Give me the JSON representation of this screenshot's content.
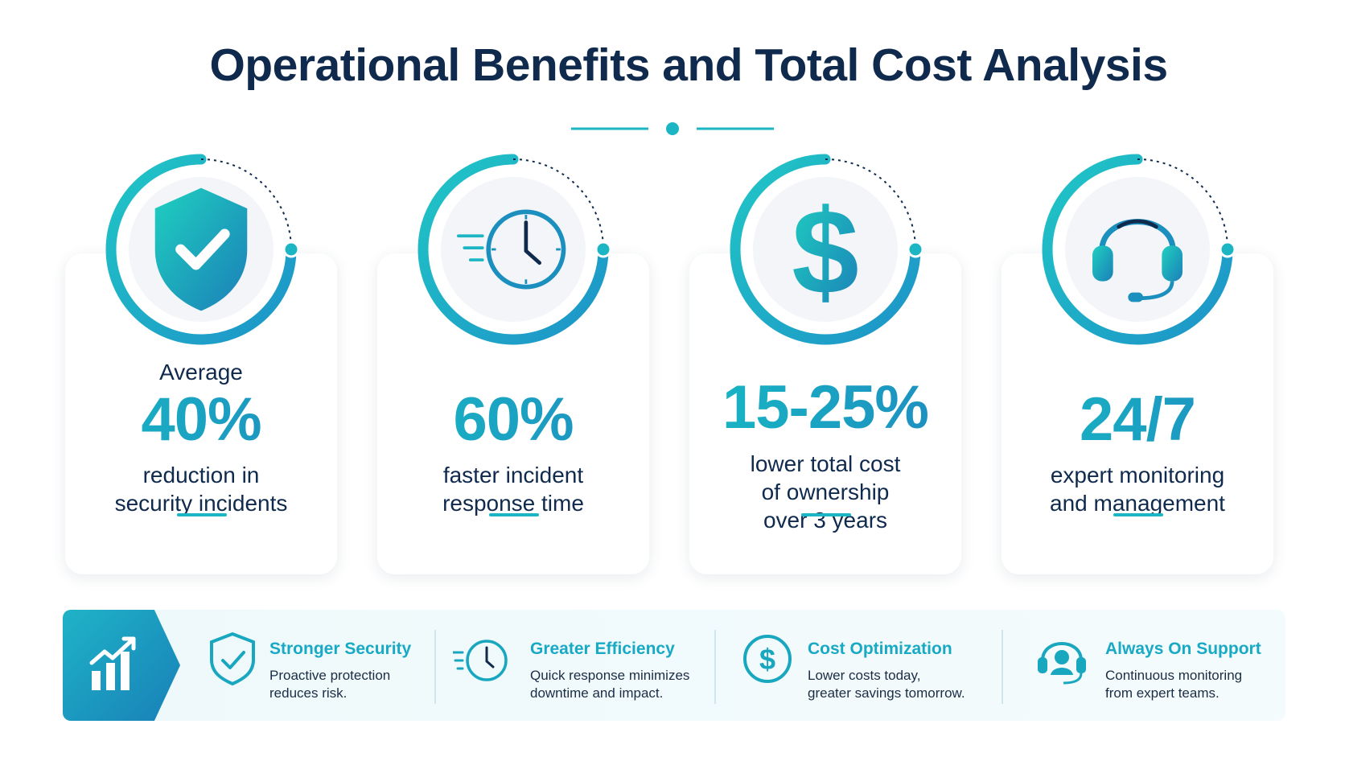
{
  "title": "Operational Benefits and Total Cost Analysis",
  "colors": {
    "navy": "#0f2a4d",
    "teal": "#1bb5c3",
    "blue": "#1e8cc0"
  },
  "stats": [
    {
      "icon": "shield-check-icon",
      "top": "Average",
      "value": "40%",
      "desc1": "reduction in",
      "desc2": "security incidents",
      "desc3": ""
    },
    {
      "icon": "clock-fast-icon",
      "top": "",
      "value": "60%",
      "desc1": "faster incident",
      "desc2": "response time",
      "desc3": ""
    },
    {
      "icon": "dollar-icon",
      "top": "",
      "value": "15-25%",
      "desc1": "lower total cost",
      "desc2": "of ownership",
      "desc3": "over 3 years"
    },
    {
      "icon": "headset-icon",
      "top": "",
      "value": "24/7",
      "desc1": "expert monitoring",
      "desc2": "and management",
      "desc3": ""
    }
  ],
  "features": [
    {
      "icon": "shield-check-icon",
      "title": "Stronger Security",
      "line1": "Proactive protection",
      "line2": "reduces risk."
    },
    {
      "icon": "clock-fast-icon",
      "title": "Greater Efficiency",
      "line1": "Quick response minimizes",
      "line2": "downtime and impact."
    },
    {
      "icon": "dollar-icon",
      "title": "Cost Optimization",
      "line1": "Lower costs today,",
      "line2": "greater savings tomorrow."
    },
    {
      "icon": "support-person-icon",
      "title": "Always On Support",
      "line1": "Continuous monitoring",
      "line2": "from expert teams."
    }
  ],
  "badge_icon": "growth-chart-icon"
}
